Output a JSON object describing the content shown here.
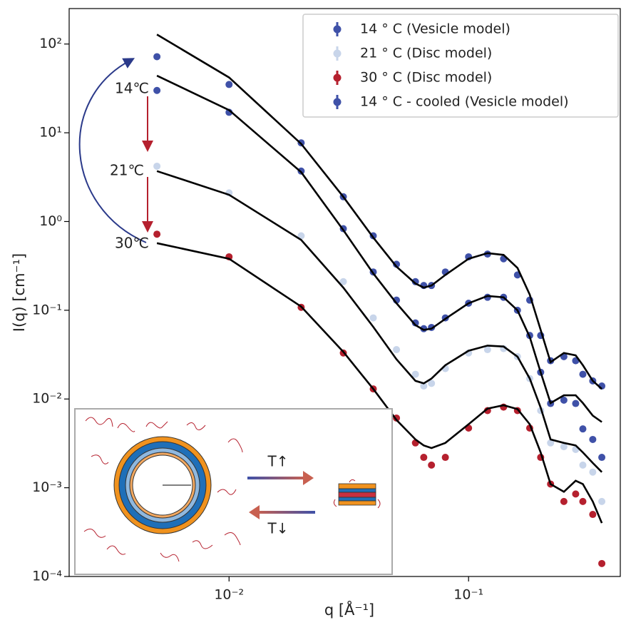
{
  "chart_data": {
    "type": "scatter",
    "xscale": "log",
    "yscale": "log",
    "xlabel": "q [Å⁻¹]",
    "ylabel": "I(q) [cm⁻¹]",
    "xlim": [
      0.00215,
      0.43
    ],
    "ylim": [
      0.0001,
      251
    ],
    "xticks": [
      {
        "value": 0.01,
        "label": "10⁻²"
      },
      {
        "value": 0.1,
        "label": "10⁻¹"
      }
    ],
    "yticks": [
      {
        "value": 0.0001,
        "label": "10⁻⁴"
      },
      {
        "value": 0.001,
        "label": "10⁻³"
      },
      {
        "value": 0.01,
        "label": "10⁻²"
      },
      {
        "value": 0.1,
        "label": "10⁻¹"
      },
      {
        "value": 1,
        "label": "10⁰"
      },
      {
        "value": 10,
        "label": "10¹"
      },
      {
        "value": 100,
        "label": "10²"
      }
    ],
    "legend": "upper right",
    "x": [
      0.005,
      0.01,
      0.02,
      0.03,
      0.04,
      0.05,
      0.06,
      0.065,
      0.07,
      0.08,
      0.1,
      0.12,
      0.14,
      0.16,
      0.18,
      0.2,
      0.22,
      0.25,
      0.28,
      0.3,
      0.33,
      0.36
    ],
    "series": [
      {
        "name": "14 ° C (Vesicle model)",
        "color": "#3f51a8",
        "values": [
          72,
          35,
          7.7,
          1.9,
          0.69,
          0.33,
          0.21,
          0.19,
          0.19,
          0.27,
          0.4,
          0.43,
          0.38,
          0.25,
          0.13,
          0.052,
          0.027,
          0.03,
          0.027,
          0.019,
          0.016,
          0.014
        ]
      },
      {
        "name": "21 ° C (Disc model)",
        "color": "#c8d5ea",
        "values": [
          4.2,
          2.1,
          0.69,
          0.21,
          0.082,
          0.036,
          0.019,
          0.014,
          0.015,
          0.022,
          0.033,
          0.036,
          0.037,
          0.03,
          0.017,
          0.0074,
          0.0032,
          0.0029,
          0.0027,
          0.0018,
          0.0015,
          0.0007
        ]
      },
      {
        "name": "30 ° C (Disc model)",
        "color": "#b5202e",
        "values": [
          0.72,
          0.4,
          0.108,
          0.033,
          0.013,
          0.0061,
          0.0032,
          0.0022,
          0.0018,
          0.0022,
          0.0047,
          0.0074,
          0.0081,
          0.0074,
          0.0047,
          0.0022,
          0.0011,
          0.0007,
          0.00085,
          0.0007,
          0.0005,
          0.00014
        ]
      },
      {
        "name": "14 ° C - cooled (Vesicle model)",
        "color": "#3f51a8",
        "values": [
          30,
          17,
          3.7,
          0.83,
          0.27,
          0.13,
          0.072,
          0.062,
          0.064,
          0.082,
          0.12,
          0.14,
          0.14,
          0.1,
          0.052,
          0.02,
          0.0089,
          0.0097,
          0.0089,
          0.0046,
          0.0035,
          0.0022
        ]
      }
    ],
    "fits": [
      {
        "color": "#000000",
        "values": [
          128,
          42,
          7.5,
          1.9,
          0.66,
          0.31,
          0.2,
          0.18,
          0.19,
          0.25,
          0.38,
          0.44,
          0.42,
          0.3,
          0.15,
          0.06,
          0.026,
          0.033,
          0.031,
          0.024,
          0.016,
          0.013
        ]
      },
      {
        "color": "#000000",
        "values": [
          3.7,
          2.0,
          0.62,
          0.18,
          0.065,
          0.028,
          0.016,
          0.015,
          0.017,
          0.024,
          0.035,
          0.04,
          0.039,
          0.03,
          0.017,
          0.008,
          0.0035,
          0.0032,
          0.003,
          0.0025,
          0.0019,
          0.0015
        ]
      },
      {
        "color": "#000000",
        "values": [
          0.57,
          0.38,
          0.11,
          0.034,
          0.013,
          0.0058,
          0.0035,
          0.003,
          0.0028,
          0.0032,
          0.0052,
          0.0078,
          0.0085,
          0.0077,
          0.0052,
          0.0025,
          0.0011,
          0.0009,
          0.0012,
          0.0011,
          0.0007,
          0.0004
        ]
      },
      {
        "color": "#000000",
        "values": [
          44,
          18,
          3.6,
          0.8,
          0.26,
          0.12,
          0.068,
          0.06,
          0.062,
          0.08,
          0.12,
          0.145,
          0.14,
          0.1,
          0.05,
          0.02,
          0.009,
          0.011,
          0.011,
          0.009,
          0.0065,
          0.0055
        ]
      }
    ],
    "annotations": [
      "14℃",
      "21℃",
      "30℃",
      "T↑",
      "T↓"
    ]
  }
}
